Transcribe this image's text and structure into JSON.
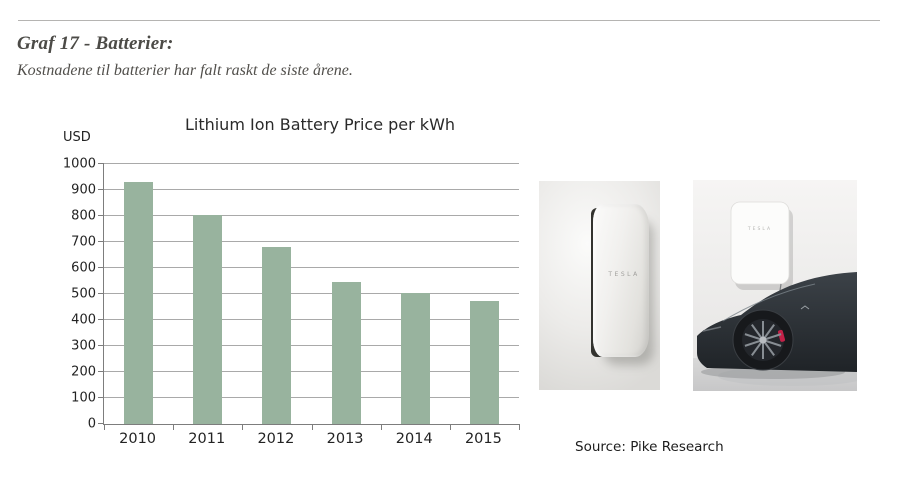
{
  "page": {
    "heading": "Graf 17 - Batterier:",
    "subheading": "Kostnadene til batterier har falt raskt de siste årene.",
    "source": "Source: Pike Research"
  },
  "chart_data": {
    "type": "bar",
    "title": "Lithium Ion Battery Price per kWh",
    "unit_label": "USD",
    "categories": [
      "2010",
      "2011",
      "2012",
      "2013",
      "2014",
      "2015"
    ],
    "values": [
      930,
      805,
      680,
      545,
      505,
      475
    ],
    "xlabel": "",
    "ylabel": "USD",
    "ylim": [
      0,
      1000
    ],
    "ytick_step": 100,
    "grid": true,
    "legend": "none",
    "bar_color": "#98b39e"
  },
  "images": [
    {
      "name": "tesla-powerwall-product-photo",
      "device_label": "TESLA"
    },
    {
      "name": "tesla-powerwall-with-model-s-photo",
      "device_label": "TESLA",
      "caliper_color": "#c22148"
    }
  ]
}
